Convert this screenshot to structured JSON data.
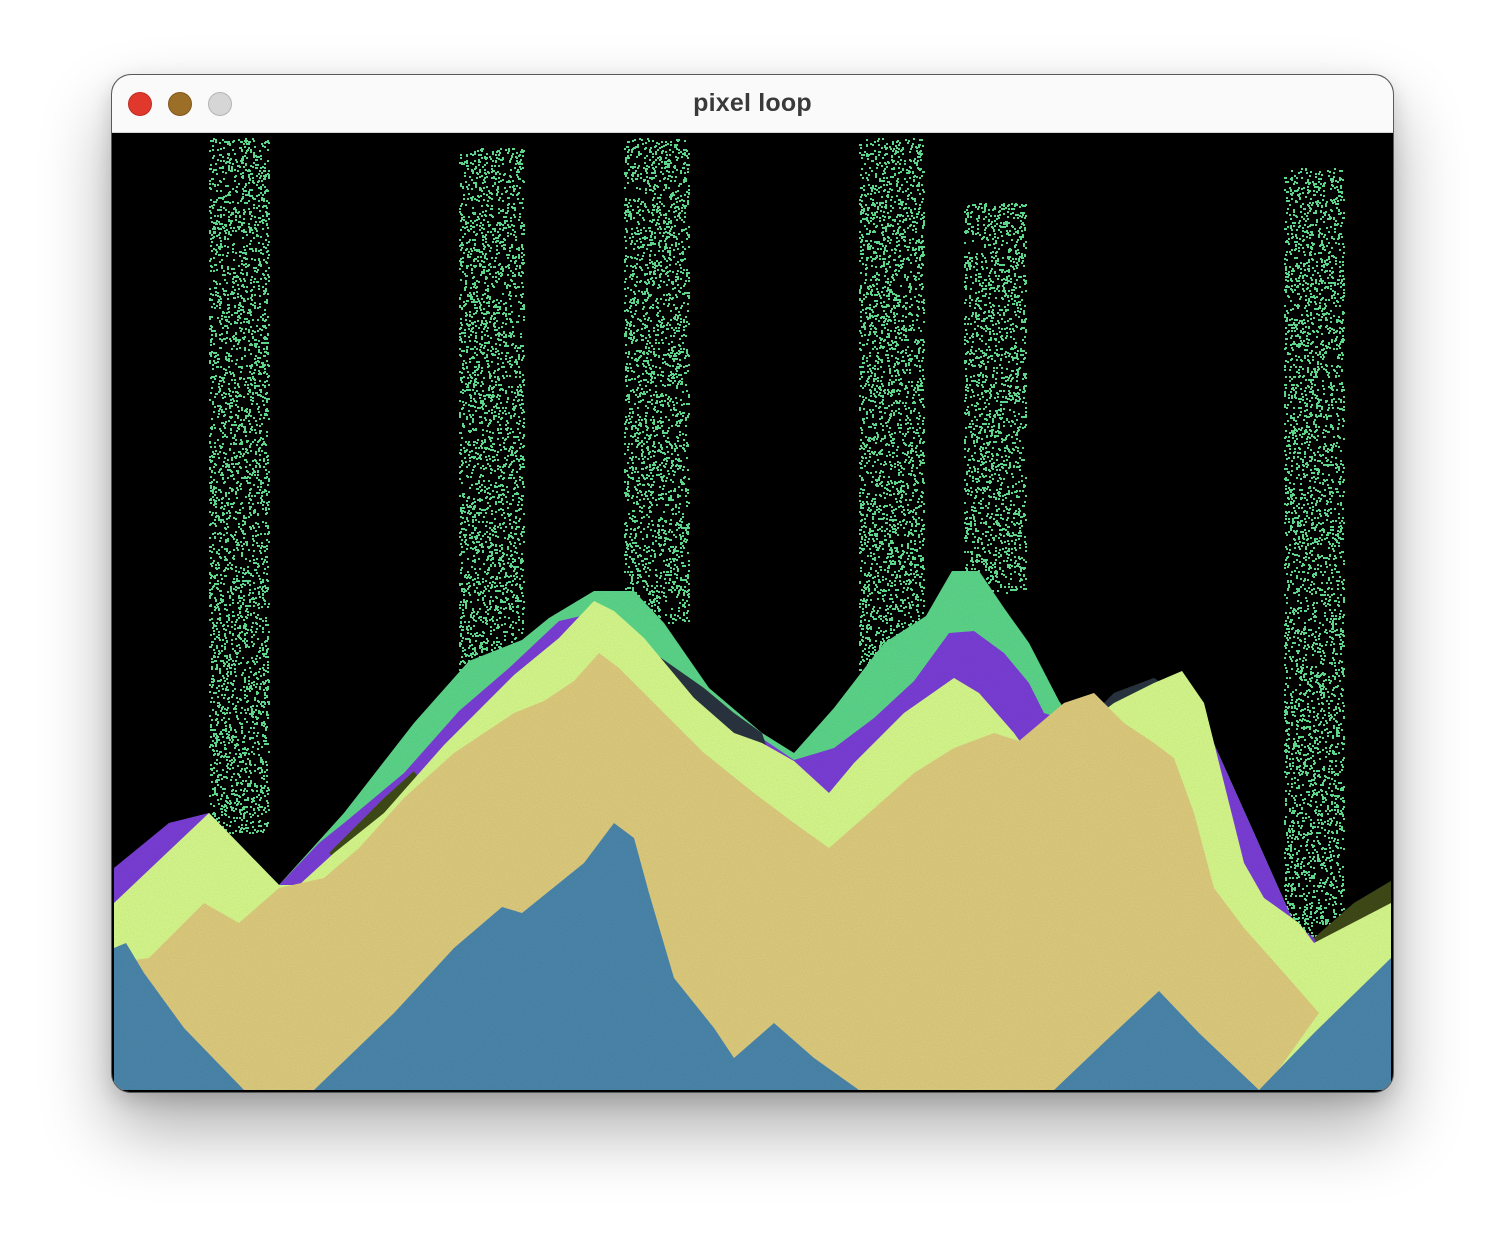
{
  "window": {
    "title": "pixel loop"
  },
  "controls": {
    "close": "close-button",
    "minimize": "minimize-button",
    "zoom": "zoom-button"
  },
  "colors": {
    "background": "#000000",
    "water": "#4a86ab",
    "sand": "#decc7e",
    "lime": "#d6f98c",
    "mint": "#5cd68a",
    "purple": "#7a3ed6",
    "dark": "#2a3340",
    "olive": "#3f4a14",
    "window_close": "#e0382d",
    "window_minimize": "#9c6f28",
    "window_zoom": "#d6d6d6"
  }
}
